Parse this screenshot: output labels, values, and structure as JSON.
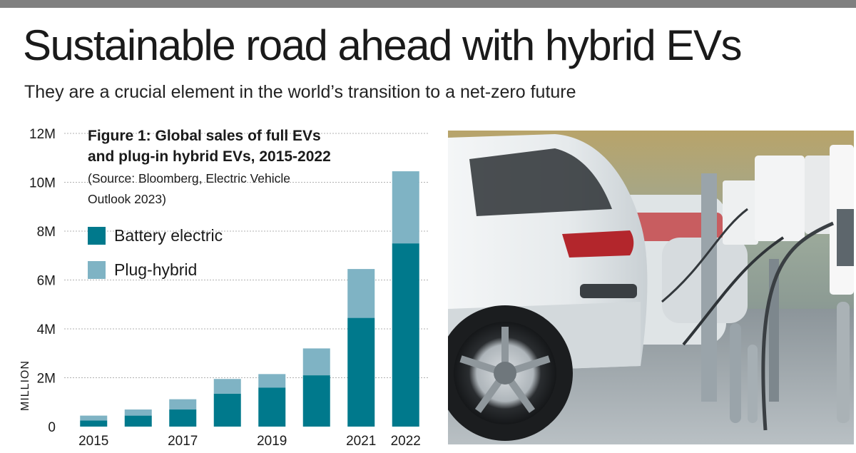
{
  "headline": "Sustainable road ahead with hybrid EVs",
  "subheadline": "They are a crucial element in the world’s transition to a net-zero future",
  "colors": {
    "battery": "#00798c",
    "plug": "#7fb3c4",
    "rule": "#808080",
    "grid": "#b0b0b0"
  },
  "photo": {
    "description_icon": "car-charging-photo"
  },
  "chart_data": {
    "type": "bar",
    "stacked": true,
    "title_lines": [
      "Figure 1: Global sales of full EVs",
      "and plug-in hybrid EVs, 2015-2022"
    ],
    "source_lines": [
      "(Source: Bloomberg, Electric Vehicle",
      "Outlook 2023)"
    ],
    "ylabel": "MILLION",
    "xlabel": "",
    "ylim": [
      0,
      12
    ],
    "yticks": [
      {
        "value": 0,
        "label": "0"
      },
      {
        "value": 2,
        "label": "2M"
      },
      {
        "value": 4,
        "label": "4M"
      },
      {
        "value": 6,
        "label": "6M"
      },
      {
        "value": 8,
        "label": "8M"
      },
      {
        "value": 10,
        "label": "10M"
      },
      {
        "value": 12,
        "label": "12M"
      }
    ],
    "categories": [
      "2015",
      "2016",
      "2017",
      "2018",
      "2019",
      "2020",
      "2021",
      "2022"
    ],
    "category_labels": [
      "2015",
      "",
      "2017",
      "",
      "2019",
      "",
      "2021",
      "2022"
    ],
    "series": [
      {
        "name": "Battery electric",
        "values": [
          0.25,
          0.45,
          0.7,
          1.35,
          1.6,
          2.1,
          4.45,
          7.5
        ]
      },
      {
        "name": "Plug-hybrid",
        "values": [
          0.2,
          0.25,
          0.42,
          0.6,
          0.55,
          1.1,
          2.0,
          2.95
        ]
      }
    ],
    "grid": true,
    "legend_position": "upper-left"
  }
}
